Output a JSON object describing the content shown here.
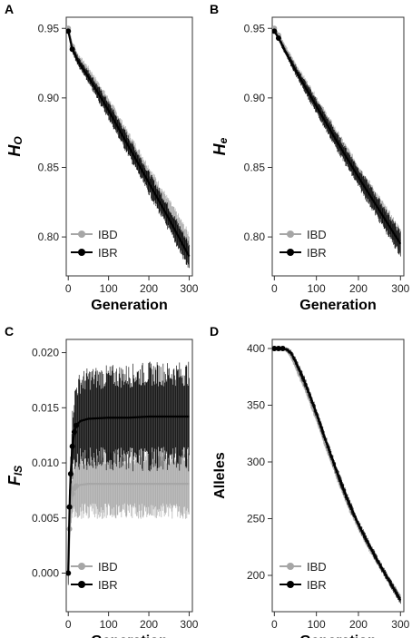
{
  "chart_data": [
    {
      "panel": "A",
      "type": "line",
      "xlabel": "Generation",
      "ylabel": {
        "main": "H",
        "sub": "O"
      },
      "xlim": [
        -5,
        308
      ],
      "ylim": [
        0.772,
        0.958
      ],
      "xticks": [
        0,
        100,
        200,
        300
      ],
      "yticks": [
        0.8,
        0.85,
        0.9,
        0.95
      ],
      "ytick_labels": [
        "0.80",
        "0.85",
        "0.90",
        "0.95"
      ],
      "legend": "bottom-left",
      "grid": false,
      "series": [
        {
          "name": "IBD",
          "color": "#a6a6a6",
          "x": [
            0,
            10,
            25,
            50,
            75,
            100,
            150,
            200,
            250,
            300
          ],
          "y": [
            0.95,
            0.937,
            0.928,
            0.918,
            0.906,
            0.894,
            0.868,
            0.843,
            0.818,
            0.793
          ],
          "err": [
            0.002,
            0.003,
            0.004,
            0.005,
            0.006,
            0.007,
            0.008,
            0.009,
            0.01,
            0.011
          ]
        },
        {
          "name": "IBR",
          "color": "#000000",
          "x": [
            0,
            10,
            25,
            50,
            75,
            100,
            150,
            200,
            250,
            300
          ],
          "y": [
            0.948,
            0.935,
            0.926,
            0.915,
            0.903,
            0.891,
            0.865,
            0.839,
            0.813,
            0.786
          ],
          "err": [
            0.002,
            0.003,
            0.004,
            0.005,
            0.006,
            0.007,
            0.008,
            0.009,
            0.01,
            0.011
          ]
        }
      ]
    },
    {
      "panel": "B",
      "type": "line",
      "xlabel": "Generation",
      "ylabel": {
        "main": "H",
        "sub": "e"
      },
      "xlim": [
        -5,
        308
      ],
      "ylim": [
        0.772,
        0.958
      ],
      "xticks": [
        0,
        100,
        200,
        300
      ],
      "yticks": [
        0.8,
        0.85,
        0.9,
        0.95
      ],
      "ytick_labels": [
        "0.80",
        "0.85",
        "0.90",
        "0.95"
      ],
      "legend": "bottom-left",
      "grid": false,
      "series": [
        {
          "name": "IBD",
          "color": "#a6a6a6",
          "x": [
            0,
            10,
            25,
            50,
            75,
            100,
            150,
            200,
            250,
            300
          ],
          "y": [
            0.95,
            0.945,
            0.936,
            0.922,
            0.909,
            0.896,
            0.87,
            0.845,
            0.821,
            0.797
          ],
          "err": [
            0.001,
            0.002,
            0.003,
            0.004,
            0.005,
            0.006,
            0.007,
            0.008,
            0.009,
            0.01
          ]
        },
        {
          "name": "IBR",
          "color": "#000000",
          "x": [
            0,
            10,
            25,
            50,
            75,
            100,
            150,
            200,
            250,
            300
          ],
          "y": [
            0.948,
            0.943,
            0.934,
            0.92,
            0.907,
            0.894,
            0.868,
            0.843,
            0.819,
            0.795
          ],
          "err": [
            0.001,
            0.002,
            0.003,
            0.004,
            0.005,
            0.006,
            0.007,
            0.008,
            0.009,
            0.01
          ]
        }
      ]
    },
    {
      "panel": "C",
      "type": "line",
      "xlabel": "Generation",
      "ylabel": {
        "main": "F",
        "sub": "IS"
      },
      "xlim": [
        -5,
        308
      ],
      "ylim": [
        -0.0035,
        0.0212
      ],
      "xticks": [
        0,
        100,
        200,
        300
      ],
      "yticks": [
        0.0,
        0.005,
        0.01,
        0.015,
        0.02
      ],
      "ytick_labels": [
        "0.000",
        "0.005",
        "0.010",
        "0.015",
        "0.020"
      ],
      "legend": "bottom-left",
      "grid": false,
      "series": [
        {
          "name": "IBD",
          "color": "#a6a6a6",
          "x": [
            0,
            3,
            6,
            10,
            15,
            20,
            30,
            50,
            100,
            150,
            200,
            250,
            300
          ],
          "y": [
            0.0,
            0.004,
            0.006,
            0.0072,
            0.0077,
            0.0079,
            0.008,
            0.0081,
            0.0081,
            0.0081,
            0.0081,
            0.0081,
            0.0081
          ],
          "err": [
            0.0012,
            0.0018,
            0.0022,
            0.0025,
            0.0028,
            0.003,
            0.0031,
            0.0032,
            0.0032,
            0.0032,
            0.0032,
            0.0032,
            0.0032
          ]
        },
        {
          "name": "IBR",
          "color": "#000000",
          "x": [
            0,
            3,
            6,
            10,
            15,
            20,
            30,
            50,
            100,
            150,
            200,
            250,
            300
          ],
          "y": [
            0.0,
            0.006,
            0.009,
            0.0115,
            0.0128,
            0.0134,
            0.0138,
            0.014,
            0.0141,
            0.0141,
            0.0142,
            0.0142,
            0.0142
          ],
          "err": [
            0.0012,
            0.002,
            0.0026,
            0.0032,
            0.0038,
            0.0043,
            0.0045,
            0.0047,
            0.0048,
            0.0049,
            0.005,
            0.005,
            0.005
          ]
        }
      ]
    },
    {
      "panel": "D",
      "type": "line",
      "xlabel": "Generation",
      "ylabel": {
        "main": "Alleles",
        "sub": ""
      },
      "xlim": [
        -5,
        308
      ],
      "ylim": [
        168,
        408
      ],
      "xticks": [
        0,
        100,
        200,
        300
      ],
      "yticks": [
        200,
        250,
        300,
        350,
        400
      ],
      "ytick_labels": [
        "200",
        "250",
        "300",
        "350",
        "400"
      ],
      "legend": "bottom-left",
      "grid": false,
      "series": [
        {
          "name": "IBD",
          "color": "#a6a6a6",
          "x": [
            0,
            10,
            20,
            30,
            40,
            50,
            75,
            100,
            125,
            150,
            175,
            200,
            225,
            250,
            275,
            300
          ],
          "y": [
            400,
            400,
            400,
            398,
            393,
            385,
            364,
            339,
            312,
            287,
            263,
            243,
            225,
            209,
            194,
            180
          ],
          "err": [
            0,
            0,
            1,
            2,
            3,
            4,
            5,
            5,
            5,
            5,
            5,
            4,
            4,
            4,
            4,
            4
          ]
        },
        {
          "name": "IBR",
          "color": "#000000",
          "x": [
            0,
            10,
            20,
            30,
            40,
            50,
            75,
            100,
            125,
            150,
            175,
            200,
            225,
            250,
            275,
            300
          ],
          "y": [
            400,
            400,
            400,
            399,
            396,
            389,
            368,
            343,
            316,
            290,
            266,
            245,
            227,
            210,
            194,
            178
          ],
          "err": [
            0,
            0,
            1,
            2,
            3,
            4,
            5,
            5,
            5,
            5,
            5,
            4,
            4,
            4,
            4,
            4
          ]
        }
      ]
    }
  ]
}
